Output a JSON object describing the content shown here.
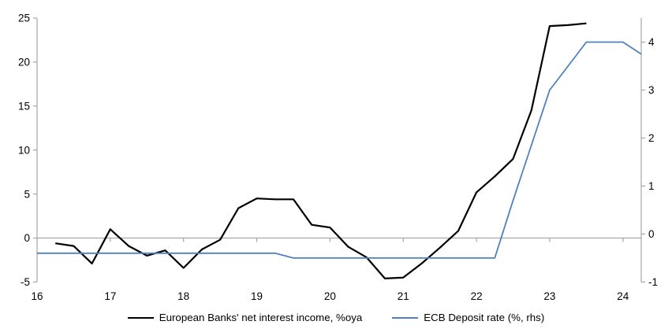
{
  "chart_data": {
    "type": "line",
    "title": "",
    "x_axis": {
      "min": 16,
      "max": 24.25,
      "tick_values": [
        16,
        17,
        18,
        19,
        20,
        21,
        22,
        23,
        24
      ],
      "tick_labels": [
        "16",
        "17",
        "18",
        "19",
        "20",
        "21",
        "22",
        "23",
        "24"
      ]
    },
    "left_axis": {
      "min": -5,
      "max": 25,
      "tick_values": [
        -5,
        0,
        5,
        10,
        15,
        20,
        25
      ],
      "tick_labels": [
        "-5",
        "0",
        "5",
        "10",
        "15",
        "20",
        "25"
      ]
    },
    "right_axis": {
      "min": -1,
      "max": 4.5,
      "tick_values": [
        -1,
        0,
        1,
        2,
        3,
        4
      ],
      "tick_labels": [
        "-1",
        "0",
        "1",
        "2",
        "3",
        "4"
      ]
    },
    "grid": "zero-line-only",
    "legend_position": "bottom-center",
    "series": [
      {
        "name": "European Banks' net interest income, %oya",
        "axis": "left",
        "color": "#000000",
        "width": 2.2,
        "points": [
          [
            16.25,
            -0.6
          ],
          [
            16.5,
            -0.9
          ],
          [
            16.75,
            -2.9
          ],
          [
            17.0,
            1.0
          ],
          [
            17.25,
            -0.9
          ],
          [
            17.5,
            -2.0
          ],
          [
            17.75,
            -1.4
          ],
          [
            18.0,
            -3.4
          ],
          [
            18.25,
            -1.3
          ],
          [
            18.5,
            -0.2
          ],
          [
            18.75,
            3.4
          ],
          [
            19.0,
            4.5
          ],
          [
            19.25,
            4.4
          ],
          [
            19.5,
            4.4
          ],
          [
            19.75,
            1.5
          ],
          [
            20.0,
            1.2
          ],
          [
            20.25,
            -1.0
          ],
          [
            20.5,
            -2.2
          ],
          [
            20.75,
            -4.6
          ],
          [
            21.0,
            -4.5
          ],
          [
            21.25,
            -2.9
          ],
          [
            21.5,
            -1.1
          ],
          [
            21.75,
            0.8
          ],
          [
            22.0,
            5.2
          ],
          [
            22.25,
            7.0
          ],
          [
            22.5,
            9.0
          ],
          [
            22.75,
            14.5
          ],
          [
            23.0,
            24.1
          ],
          [
            23.25,
            24.2
          ],
          [
            23.5,
            24.4
          ]
        ]
      },
      {
        "name": "ECB Deposit rate (%, rhs)",
        "axis": "right",
        "color": "#4F81BD",
        "width": 1.8,
        "points": [
          [
            16.0,
            -0.4
          ],
          [
            16.25,
            -0.4
          ],
          [
            16.5,
            -0.4
          ],
          [
            16.75,
            -0.4
          ],
          [
            17.0,
            -0.4
          ],
          [
            17.25,
            -0.4
          ],
          [
            17.5,
            -0.4
          ],
          [
            17.75,
            -0.4
          ],
          [
            18.0,
            -0.4
          ],
          [
            18.25,
            -0.4
          ],
          [
            18.5,
            -0.4
          ],
          [
            18.75,
            -0.4
          ],
          [
            19.0,
            -0.4
          ],
          [
            19.25,
            -0.4
          ],
          [
            19.5,
            -0.5
          ],
          [
            19.75,
            -0.5
          ],
          [
            20.0,
            -0.5
          ],
          [
            20.25,
            -0.5
          ],
          [
            20.5,
            -0.5
          ],
          [
            20.75,
            -0.5
          ],
          [
            21.0,
            -0.5
          ],
          [
            21.25,
            -0.5
          ],
          [
            21.5,
            -0.5
          ],
          [
            21.75,
            -0.5
          ],
          [
            22.0,
            -0.5
          ],
          [
            22.25,
            -0.5
          ],
          [
            22.5,
            0.7
          ],
          [
            22.75,
            1.85
          ],
          [
            23.0,
            3.0
          ],
          [
            23.25,
            3.5
          ],
          [
            23.5,
            4.0
          ],
          [
            23.75,
            4.0
          ],
          [
            24.0,
            4.0
          ],
          [
            24.25,
            3.75
          ]
        ]
      }
    ]
  },
  "colors": {
    "axis_gray": "#A6A6A6",
    "series_black": "#000000",
    "series_blue": "#4F81BD",
    "text": "#000000",
    "background": "#FFFFFF"
  }
}
